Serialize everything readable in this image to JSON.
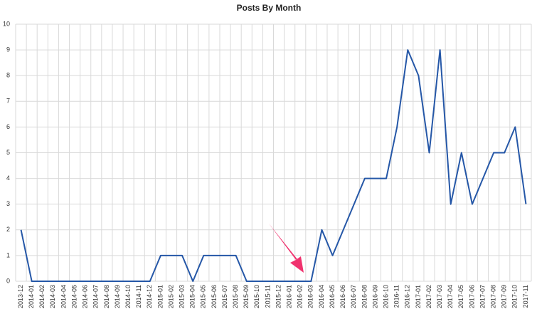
{
  "chart_data": {
    "type": "line",
    "title": "Posts By Month",
    "categories": [
      "2013-12",
      "2014-01",
      "2014-02",
      "2014-03",
      "2014-04",
      "2014-05",
      "2014-06",
      "2014-07",
      "2014-08",
      "2014-09",
      "2014-10",
      "2014-11",
      "2014-12",
      "2015-01",
      "2015-02",
      "2015-03",
      "2015-04",
      "2015-05",
      "2015-06",
      "2015-07",
      "2015-08",
      "2015-09",
      "2015-10",
      "2015-11",
      "2015-12",
      "2016-01",
      "2016-02",
      "2016-03",
      "2016-04",
      "2016-05",
      "2016-06",
      "2016-07",
      "2016-08",
      "2016-09",
      "2016-10",
      "2016-11",
      "2016-12",
      "2017-01",
      "2017-02",
      "2017-03",
      "2017-04",
      "2017-05",
      "2017-06",
      "2017-07",
      "2017-08",
      "2017-09",
      "2017-10",
      "2017-11"
    ],
    "values": [
      2,
      0,
      0,
      0,
      0,
      0,
      0,
      0,
      0,
      0,
      0,
      0,
      0,
      1,
      1,
      1,
      0,
      1,
      1,
      1,
      1,
      0,
      0,
      0,
      0,
      0,
      0,
      0,
      2,
      1,
      2,
      3,
      4,
      4,
      4,
      6,
      9,
      8,
      5,
      9,
      3,
      5,
      3,
      4,
      5,
      5,
      6,
      3
    ],
    "color": "#2557a7",
    "ylim": [
      0,
      10
    ],
    "yticks": [
      0,
      1,
      2,
      3,
      4,
      5,
      6,
      7,
      8,
      9,
      10
    ],
    "grid": true
  }
}
